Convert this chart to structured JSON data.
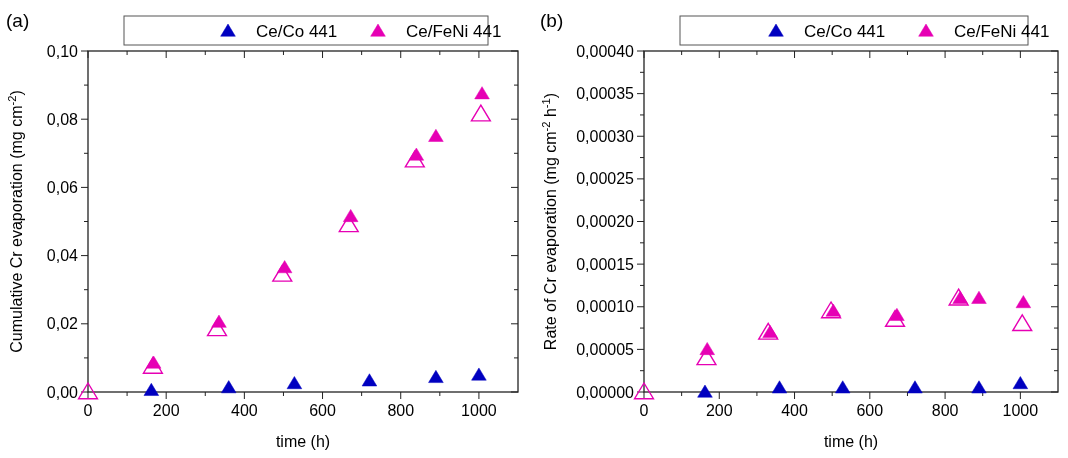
{
  "chart_data": [
    {
      "type": "scatter",
      "annotations": [
        "(a)"
      ],
      "xlabel": "time (h)",
      "ylabel": "Cumulative Cr evaporation (mg cm$^{-2}$)",
      "legend": "top",
      "marker": "triangle",
      "xlim": [
        0,
        1100
      ],
      "ylim": [
        0,
        0.1
      ],
      "xticks": [
        0,
        {
          "value": 100,
          "label": null
        },
        200,
        {
          "value": 300,
          "label": null
        },
        400,
        {
          "value": 500,
          "label": null
        },
        600,
        {
          "value": 700,
          "label": null
        },
        800,
        {
          "value": 900,
          "label": null
        },
        1000
      ],
      "yticks": [
        {
          "value": 0,
          "label": "0,00"
        },
        {
          "value": 0.01,
          "label": null
        },
        {
          "value": 0.02,
          "label": "0,02"
        },
        {
          "value": 0.03,
          "label": null
        },
        {
          "value": 0.04,
          "label": "0,04"
        },
        {
          "value": 0.05,
          "label": null
        },
        {
          "value": 0.06,
          "label": "0,06"
        },
        {
          "value": 0.07,
          "label": null
        },
        {
          "value": 0.08,
          "label": "0,08"
        },
        {
          "value": 0.09,
          "label": null
        },
        {
          "value": 0.1,
          "label": "0,10"
        }
      ],
      "series": [
        {
          "name": "Ce/Co 441",
          "color": "#0000c0",
          "x": [
            162,
            360,
            528,
            720,
            890,
            1000
          ],
          "values": [
            0.0005,
            0.0013,
            0.0025,
            0.0033,
            0.0043,
            0.005
          ]
        },
        {
          "color": "#e600b4",
          "marker": "triangle-open",
          "x": [
            0,
            166,
            330,
            497,
            667,
            836,
            1005
          ],
          "values": [
            0,
            0.0075,
            0.0185,
            0.0345,
            0.049,
            0.068,
            0.0815
          ]
        },
        {
          "name": "Ce/FeNi 441",
          "color": "#e600b4",
          "x": [
            168,
            335,
            503,
            672,
            840,
            890,
            1008
          ],
          "values": [
            0.0085,
            0.0205,
            0.0365,
            0.0515,
            0.0695,
            0.075,
            0.0875
          ]
        }
      ]
    },
    {
      "type": "scatter",
      "annotations": [
        "(b)"
      ],
      "xlabel": "time (h)",
      "ylabel": "Rate of Cr evaporation (mg cm$^{-2}$ h$^{-1}$)",
      "legend": "top",
      "marker": "triangle",
      "xlim": [
        0,
        1100
      ],
      "ylim": [
        0,
        0.0004
      ],
      "xticks": [
        0,
        {
          "value": 100,
          "label": null
        },
        200,
        {
          "value": 300,
          "label": null
        },
        400,
        {
          "value": 500,
          "label": null
        },
        600,
        {
          "value": 700,
          "label": null
        },
        800,
        {
          "value": 900,
          "label": null
        },
        1000
      ],
      "yticks": [
        {
          "value": 0,
          "label": "0,00000"
        },
        {
          "value": 2.5e-05,
          "label": null
        },
        {
          "value": 5e-05,
          "label": "0,00005"
        },
        {
          "value": 7.5e-05,
          "label": null
        },
        {
          "value": 0.0001,
          "label": "0,00010"
        },
        {
          "value": 0.000125,
          "label": null
        },
        {
          "value": 0.00015,
          "label": "0,00015"
        },
        {
          "value": 0.000175,
          "label": null
        },
        {
          "value": 0.0002,
          "label": "0,00020"
        },
        {
          "value": 0.000225,
          "label": null
        },
        {
          "value": 0.00025,
          "label": "0,00025"
        },
        {
          "value": 0.000275,
          "label": null
        },
        {
          "value": 0.0003,
          "label": "0,00030"
        },
        {
          "value": 0.000325,
          "label": null
        },
        {
          "value": 0.00035,
          "label": "0,00035"
        },
        {
          "value": 0.000375,
          "label": null
        },
        {
          "value": 0.0004,
          "label": "0,00040"
        }
      ],
      "series": [
        {
          "name": "Ce/Co 441",
          "color": "#0000c0",
          "x": [
            162,
            360,
            528,
            720,
            890,
            1000
          ],
          "values": [
            0,
            5e-06,
            5e-06,
            5e-06,
            5e-06,
            1e-05
          ]
        },
        {
          "color": "#e600b4",
          "marker": "triangle-open",
          "x": [
            0,
            166,
            330,
            497,
            667,
            836,
            1005
          ],
          "values": [
            0,
            4e-05,
            7e-05,
            9.5e-05,
            8.5e-05,
            0.00011,
            8e-05
          ]
        },
        {
          "name": "Ce/FeNi 441",
          "color": "#e600b4",
          "x": [
            168,
            335,
            503,
            672,
            840,
            890,
            1008
          ],
          "values": [
            5e-05,
            7e-05,
            9.5e-05,
            9e-05,
            0.00011,
            0.00011,
            0.000105
          ]
        }
      ]
    }
  ]
}
